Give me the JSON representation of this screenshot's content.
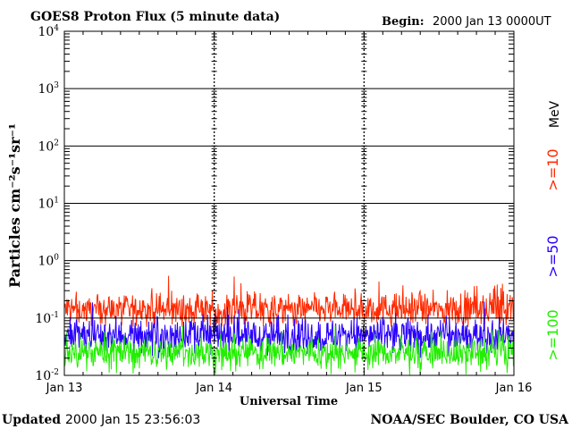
{
  "header": {
    "title": "GOES8 Proton Flux (5 minute data)",
    "begin_label": "Begin:",
    "begin_value": "2000 Jan 13 0000UT"
  },
  "footer": {
    "updated_label": "Updated",
    "updated_value": "2000 Jan 15 23:56:03",
    "credit": "NOAA/SEC Boulder, CO USA"
  },
  "legend": {
    "unit": "MeV",
    "entries": [
      {
        "label": ">=10",
        "color": "#ff2a00"
      },
      {
        "label": ">=50",
        "color": "#2a00ff"
      },
      {
        "label": ">=100",
        "color": "#22ee00"
      }
    ]
  },
  "chart_data": {
    "type": "line",
    "title": "GOES8 Proton Flux (5 minute data)",
    "xlabel": "Universal Time",
    "ylabel": "Particles cm⁻²s⁻¹sr⁻¹",
    "x_ticks": [
      "Jan 13",
      "Jan 14",
      "Jan 15",
      "Jan 16"
    ],
    "x_range": [
      "2000-01-13T00:00Z",
      "2000-01-16T00:00Z"
    ],
    "x_resolution_minutes": 5,
    "y_scale": "log",
    "y_range": [
      0.01,
      10000
    ],
    "y_tick_labels": [
      {
        "base": "10",
        "exp": "-2"
      },
      {
        "base": "10",
        "exp": "-1"
      },
      {
        "base": "10",
        "exp": "0"
      },
      {
        "base": "10",
        "exp": "1"
      },
      {
        "base": "10",
        "exp": "2"
      },
      {
        "base": "10",
        "exp": "3"
      },
      {
        "base": "10",
        "exp": "4"
      }
    ],
    "y_tick_values": [
      0.01,
      0.1,
      1,
      10,
      100,
      1000,
      10000
    ],
    "grid": "horizontal lines at each decade, vertical dashed day dividers",
    "series": [
      {
        "name": ">=10 MeV",
        "color": "#ff2a00",
        "typical": 0.14,
        "min": 0.07,
        "max": 0.6
      },
      {
        "name": ">=50 MeV",
        "color": "#2a00ff",
        "typical": 0.05,
        "min": 0.02,
        "max": 0.2
      },
      {
        "name": ">=100 MeV",
        "color": "#22ee00",
        "typical": 0.025,
        "min": 0.01,
        "max": 0.08
      }
    ]
  }
}
